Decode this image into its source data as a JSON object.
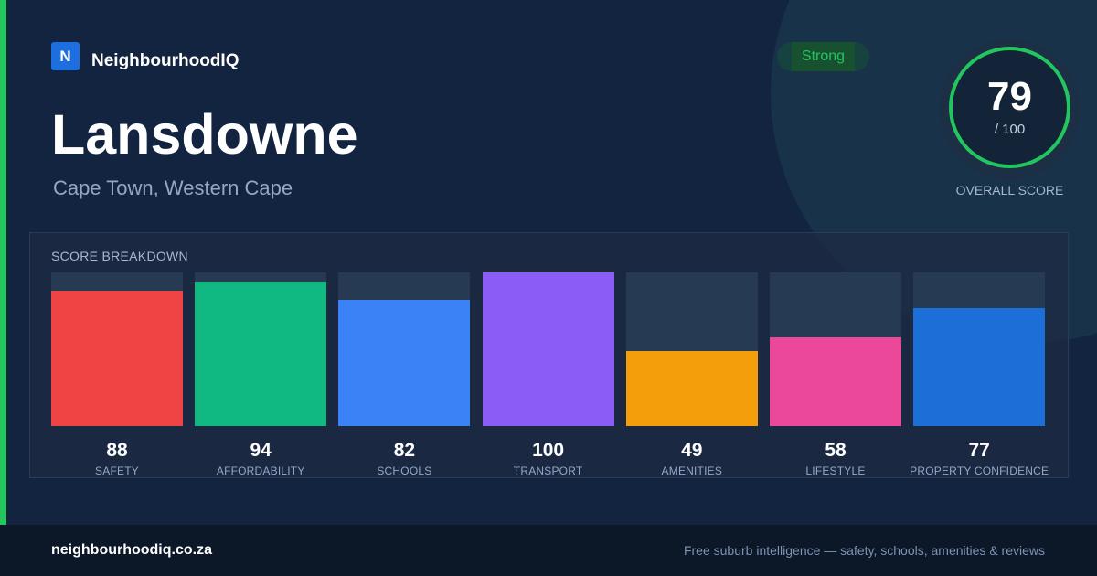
{
  "brand": {
    "logo_letter": "N",
    "name": "NeighbourhoodIQ"
  },
  "suburb": {
    "name": "Lansdowne",
    "location": "Cape Town, Western Cape"
  },
  "badge": {
    "label": "Strong",
    "color": "#22c55e"
  },
  "overall": {
    "score": "79",
    "out_of": "/ 100",
    "label": "OVERALL SCORE",
    "ring_color": "#22c55e"
  },
  "breakdown": {
    "title": "SCORE BREAKDOWN"
  },
  "chart_data": {
    "type": "bar",
    "categories": [
      "SAFETY",
      "AFFORDABILITY",
      "SCHOOLS",
      "TRANSPORT",
      "AMENITIES",
      "LIFESTYLE",
      "PROPERTY CONFIDENCE"
    ],
    "values": [
      88,
      94,
      82,
      100,
      49,
      58,
      77
    ],
    "colors": [
      "#ef4444",
      "#10b981",
      "#3b82f6",
      "#8b5cf6",
      "#f59e0b",
      "#ec4899",
      "#1d6fd8"
    ],
    "ylim": [
      0,
      100
    ],
    "title": "SCORE BREAKDOWN"
  },
  "footer": {
    "domain": "neighbourhoodiq.co.za",
    "tagline": "Free suburb intelligence — safety, schools, amenities & reviews"
  }
}
